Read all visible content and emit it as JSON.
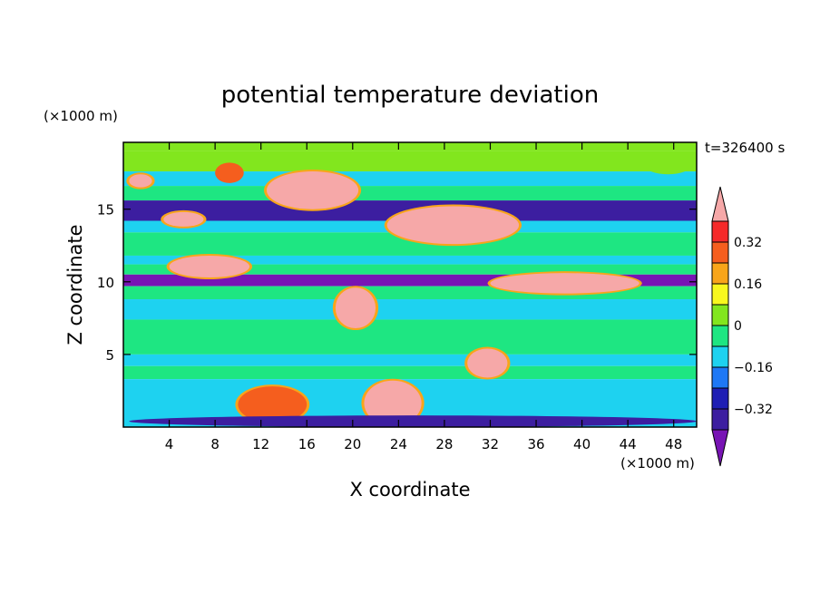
{
  "chart_data": {
    "type": "heatmap",
    "title": "potential temperature deviation",
    "xlabel": "X coordinate",
    "ylabel": "Z coordinate",
    "x_unit": "(×1000 m)",
    "y_unit": "(×1000 m)",
    "time_label": "t=326400 s",
    "xlim": [
      0,
      50
    ],
    "ylim": [
      0,
      19.6
    ],
    "x_ticks": [
      4,
      8,
      12,
      16,
      20,
      24,
      28,
      32,
      36,
      40,
      44,
      48
    ],
    "y_ticks": [
      5,
      10,
      15
    ],
    "colorbar": {
      "ticks": [
        0.32,
        0.16,
        0,
        -0.16,
        -0.32
      ],
      "tick_labels": [
        "0.32",
        "0.16",
        "0",
        "−0.16",
        "−0.32"
      ],
      "bands_top_to_bottom": [
        {
          "range": "> 0.40",
          "color": "#f6a8a8"
        },
        {
          "range": "0.32 to 0.40",
          "color": "#f52a2a"
        },
        {
          "range": "0.24 to 0.32",
          "color": "#f55e1e"
        },
        {
          "range": "0.16 to 0.24",
          "color": "#f8a51a"
        },
        {
          "range": "0.08 to 0.16",
          "color": "#f8f81e"
        },
        {
          "range": "0 to 0.08",
          "color": "#82e61e"
        },
        {
          "range": "-0.08 to 0",
          "color": "#1ee682"
        },
        {
          "range": "-0.16 to -0.08",
          "color": "#1ed2f0"
        },
        {
          "range": "-0.24 to -0.16",
          "color": "#1e78f5"
        },
        {
          "range": "-0.32 to -0.24",
          "color": "#1e1eb4"
        },
        {
          "range": "-0.40 to -0.32",
          "color": "#3c1ea0"
        },
        {
          "range": "< -0.40",
          "color": "#7814b4"
        }
      ]
    },
    "layers": [
      {
        "z_range": [
          19.0,
          19.6
        ],
        "level": 0.04
      },
      {
        "z_range": [
          17.6,
          19.0
        ],
        "level": 0.04
      },
      {
        "z_range": [
          16.6,
          17.6
        ],
        "level": -0.12
      },
      {
        "z_range": [
          15.6,
          16.6
        ],
        "level": -0.04
      },
      {
        "z_range": [
          14.2,
          15.6
        ],
        "level": -0.36
      },
      {
        "z_range": [
          13.4,
          14.2
        ],
        "level": -0.12
      },
      {
        "z_range": [
          11.8,
          13.4
        ],
        "level": -0.04
      },
      {
        "z_range": [
          11.2,
          11.8
        ],
        "level": -0.12
      },
      {
        "z_range": [
          10.5,
          11.2
        ],
        "level": -0.04
      },
      {
        "z_range": [
          9.7,
          10.5
        ],
        "level": -0.44
      },
      {
        "z_range": [
          8.8,
          9.7
        ],
        "level": -0.04
      },
      {
        "z_range": [
          7.4,
          8.8
        ],
        "level": -0.12
      },
      {
        "z_range": [
          5.0,
          7.4
        ],
        "level": -0.04
      },
      {
        "z_range": [
          4.2,
          5.0
        ],
        "level": -0.12
      },
      {
        "z_range": [
          3.3,
          4.2
        ],
        "level": -0.04
      },
      {
        "z_range": [
          0.0,
          3.3
        ],
        "level": -0.12
      }
    ],
    "features": [
      {
        "x": [
          0.5,
          2.5
        ],
        "z": [
          16.5,
          17.4
        ],
        "level": 0.44
      },
      {
        "x": [
          8.0,
          10.5
        ],
        "z": [
          16.8,
          18.2
        ],
        "level": 0.28
      },
      {
        "x": [
          12.5,
          20.5
        ],
        "z": [
          15.0,
          17.6
        ],
        "level": 0.44
      },
      {
        "x": [
          3.5,
          7.0
        ],
        "z": [
          13.8,
          14.8
        ],
        "level": 0.44
      },
      {
        "x": [
          23.0,
          34.5
        ],
        "z": [
          12.6,
          15.2
        ],
        "level": 0.44
      },
      {
        "x": [
          4.0,
          11.0
        ],
        "z": [
          10.3,
          11.8
        ],
        "level": 0.44
      },
      {
        "x": [
          32.0,
          45.0
        ],
        "z": [
          9.2,
          10.6
        ],
        "level": 0.44
      },
      {
        "x": [
          18.5,
          22.0
        ],
        "z": [
          6.8,
          9.6
        ],
        "level": 0.44
      },
      {
        "x": [
          30.0,
          33.5
        ],
        "z": [
          3.4,
          5.4
        ],
        "level": 0.44
      },
      {
        "x": [
          21.0,
          26.0
        ],
        "z": [
          0.1,
          3.2
        ],
        "level": 0.44
      },
      {
        "x": [
          10.0,
          16.0
        ],
        "z": [
          0.3,
          2.8
        ],
        "level": 0.32
      },
      {
        "x": [
          0.5,
          50.0
        ],
        "z": [
          0.0,
          0.8
        ],
        "level": -0.36
      },
      {
        "x": [
          45.5,
          49.5
        ],
        "z": [
          17.4,
          18.6
        ],
        "level": 0.08
      }
    ]
  }
}
